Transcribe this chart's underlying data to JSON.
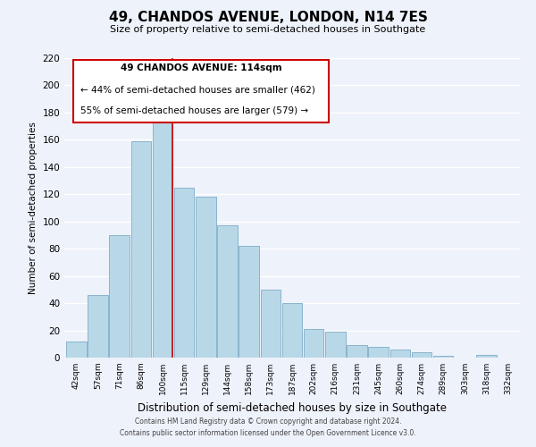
{
  "title": "49, CHANDOS AVENUE, LONDON, N14 7ES",
  "subtitle": "Size of property relative to semi-detached houses in Southgate",
  "xlabel": "Distribution of semi-detached houses by size in Southgate",
  "ylabel": "Number of semi-detached properties",
  "categories": [
    "42sqm",
    "57sqm",
    "71sqm",
    "86sqm",
    "100sqm",
    "115sqm",
    "129sqm",
    "144sqm",
    "158sqm",
    "173sqm",
    "187sqm",
    "202sqm",
    "216sqm",
    "231sqm",
    "245sqm",
    "260sqm",
    "274sqm",
    "289sqm",
    "303sqm",
    "318sqm",
    "332sqm"
  ],
  "values": [
    12,
    46,
    90,
    159,
    178,
    125,
    118,
    97,
    82,
    50,
    40,
    21,
    19,
    9,
    8,
    6,
    4,
    1,
    0,
    2,
    0
  ],
  "bar_color": "#b8d8e8",
  "bar_edge_color": "#8ab4cc",
  "highlight_bar_index": 4,
  "highlight_line_color": "#cc0000",
  "annotation_title": "49 CHANDOS AVENUE: 114sqm",
  "annotation_line1": "← 44% of semi-detached houses are smaller (462)",
  "annotation_line2": "55% of semi-detached houses are larger (579) →",
  "annotation_box_color": "#cc0000",
  "ylim": [
    0,
    220
  ],
  "yticks": [
    0,
    20,
    40,
    60,
    80,
    100,
    120,
    140,
    160,
    180,
    200,
    220
  ],
  "footer1": "Contains HM Land Registry data © Crown copyright and database right 2024.",
  "footer2": "Contains public sector information licensed under the Open Government Licence v3.0.",
  "bg_color": "#eef2fa",
  "grid_color": "#ffffff"
}
